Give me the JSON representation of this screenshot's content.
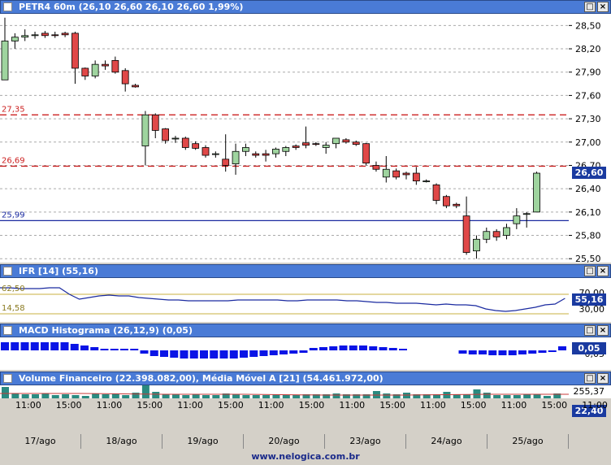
{
  "main": {
    "title": "PETR4 60m",
    "ohlc": "(26,10   26,60   26,10   26,60   1,99%)",
    "price_ticks": [
      "28,50",
      "28,20",
      "27,90",
      "27,60",
      "27,30",
      "27,00",
      "26,70",
      "26,40",
      "26,10",
      "25,80",
      "25,50"
    ],
    "levels": [
      {
        "label": "27,35",
        "value": 27.35,
        "color": "#cc2222",
        "style": "dashed"
      },
      {
        "label": "26,69",
        "value": 26.69,
        "color": "#cc2222",
        "style": "dashed"
      },
      {
        "label": "25,99",
        "value": 25.99,
        "color": "#1a2aa0",
        "style": "solid"
      }
    ],
    "last_price": "26,60"
  },
  "ifr": {
    "title": "IFR [14]",
    "value_text": "(55,16)",
    "ticks": [
      "70,00",
      "30,00"
    ],
    "levels": [
      "62,50",
      "14,58"
    ],
    "last": "55,16"
  },
  "macd": {
    "title": "MACD Histograma (26,12,9)",
    "value_text": "(0,05)",
    "tick": "0,05",
    "last": "0,05"
  },
  "volume": {
    "title": "Volume Financeiro",
    "value_text": "(22.398.082,00)",
    "ma_text": ", Média Móvel A [21]",
    "ma_value": "(54.461.972,00)",
    "tick": "255,37",
    "last": "22,40"
  },
  "time_labels": [
    "11:00",
    "15:00",
    "11:00",
    "15:00",
    "11:00",
    "15:00",
    "11:00",
    "15:00",
    "11:00",
    "15:00",
    "11:00",
    "15:00",
    "11:00",
    "15:00",
    "11:00"
  ],
  "days": [
    "17/ago",
    "18/ago",
    "19/ago",
    "20/ago",
    "23/ago",
    "24/ago",
    "25/ago"
  ],
  "footer": "www.nelogica.com.br",
  "colors": {
    "up": "#9fd49f",
    "down": "#e04848",
    "accent": "#1a3aa0",
    "title": "#4a7bd6"
  },
  "chart_data": {
    "type": "candlestick",
    "title": "PETR4 60m",
    "candles": [
      {
        "o": 27.8,
        "h": 28.6,
        "l": 27.8,
        "c": 28.3
      },
      {
        "o": 28.3,
        "h": 28.4,
        "l": 28.2,
        "c": 28.35
      },
      {
        "o": 28.35,
        "h": 28.45,
        "l": 28.3,
        "c": 28.37
      },
      {
        "o": 28.37,
        "h": 28.42,
        "l": 28.33,
        "c": 28.38
      },
      {
        "o": 28.4,
        "h": 28.43,
        "l": 28.34,
        "c": 28.37
      },
      {
        "o": 28.38,
        "h": 28.42,
        "l": 28.34,
        "c": 28.37
      },
      {
        "o": 28.4,
        "h": 28.42,
        "l": 28.35,
        "c": 28.38
      },
      {
        "o": 28.4,
        "h": 28.42,
        "l": 27.75,
        "c": 27.95
      },
      {
        "o": 27.95,
        "h": 27.96,
        "l": 27.8,
        "c": 27.85
      },
      {
        "o": 27.85,
        "h": 28.05,
        "l": 27.82,
        "c": 28.0
      },
      {
        "o": 28.0,
        "h": 28.05,
        "l": 27.93,
        "c": 27.98
      },
      {
        "o": 28.05,
        "h": 28.1,
        "l": 27.88,
        "c": 27.9
      },
      {
        "o": 27.92,
        "h": 27.95,
        "l": 27.65,
        "c": 27.75
      },
      {
        "o": 27.73,
        "h": 27.75,
        "l": 27.7,
        "c": 27.71
      },
      {
        "o": 26.95,
        "h": 27.4,
        "l": 26.7,
        "c": 27.35
      },
      {
        "o": 27.35,
        "h": 27.37,
        "l": 27.05,
        "c": 27.15
      },
      {
        "o": 27.17,
        "h": 27.18,
        "l": 26.98,
        "c": 27.02
      },
      {
        "o": 27.05,
        "h": 27.08,
        "l": 26.99,
        "c": 27.05
      },
      {
        "o": 27.05,
        "h": 27.07,
        "l": 26.9,
        "c": 26.93
      },
      {
        "o": 26.98,
        "h": 27.01,
        "l": 26.9,
        "c": 26.92
      },
      {
        "o": 26.93,
        "h": 26.96,
        "l": 26.8,
        "c": 26.83
      },
      {
        "o": 26.85,
        "h": 26.88,
        "l": 26.8,
        "c": 26.85
      },
      {
        "o": 26.78,
        "h": 27.1,
        "l": 26.62,
        "c": 26.7
      },
      {
        "o": 26.72,
        "h": 26.98,
        "l": 26.58,
        "c": 26.88
      },
      {
        "o": 26.88,
        "h": 26.98,
        "l": 26.82,
        "c": 26.93
      },
      {
        "o": 26.85,
        "h": 26.88,
        "l": 26.8,
        "c": 26.83
      },
      {
        "o": 26.85,
        "h": 26.9,
        "l": 26.75,
        "c": 26.83
      },
      {
        "o": 26.85,
        "h": 26.93,
        "l": 26.8,
        "c": 26.91
      },
      {
        "o": 26.88,
        "h": 26.95,
        "l": 26.82,
        "c": 26.93
      },
      {
        "o": 26.95,
        "h": 26.97,
        "l": 26.9,
        "c": 26.93
      },
      {
        "o": 26.99,
        "h": 27.2,
        "l": 26.92,
        "c": 26.96
      },
      {
        "o": 26.98,
        "h": 27.0,
        "l": 26.95,
        "c": 26.97
      },
      {
        "o": 26.93,
        "h": 27.0,
        "l": 26.85,
        "c": 26.96
      },
      {
        "o": 26.98,
        "h": 27.04,
        "l": 26.92,
        "c": 27.05
      },
      {
        "o": 27.03,
        "h": 27.05,
        "l": 26.98,
        "c": 27.0
      },
      {
        "o": 27.0,
        "h": 27.02,
        "l": 26.95,
        "c": 26.97
      },
      {
        "o": 26.98,
        "h": 26.99,
        "l": 26.7,
        "c": 26.73
      },
      {
        "o": 26.7,
        "h": 26.75,
        "l": 26.62,
        "c": 26.65
      },
      {
        "o": 26.55,
        "h": 26.82,
        "l": 26.48,
        "c": 26.65
      },
      {
        "o": 26.63,
        "h": 26.66,
        "l": 26.52,
        "c": 26.55
      },
      {
        "o": 26.6,
        "h": 26.62,
        "l": 26.52,
        "c": 26.58
      },
      {
        "o": 26.6,
        "h": 26.68,
        "l": 26.45,
        "c": 26.5
      },
      {
        "o": 26.5,
        "h": 26.52,
        "l": 26.48,
        "c": 26.5
      },
      {
        "o": 26.45,
        "h": 26.47,
        "l": 26.2,
        "c": 26.25
      },
      {
        "o": 26.3,
        "h": 26.32,
        "l": 26.15,
        "c": 26.18
      },
      {
        "o": 26.2,
        "h": 26.22,
        "l": 26.15,
        "c": 26.18
      },
      {
        "o": 26.05,
        "h": 26.3,
        "l": 25.55,
        "c": 25.58
      },
      {
        "o": 25.6,
        "h": 25.8,
        "l": 25.5,
        "c": 25.75
      },
      {
        "o": 25.75,
        "h": 25.9,
        "l": 25.7,
        "c": 25.85
      },
      {
        "o": 25.85,
        "h": 25.88,
        "l": 25.73,
        "c": 25.78
      },
      {
        "o": 25.8,
        "h": 25.95,
        "l": 25.75,
        "c": 25.9
      },
      {
        "o": 25.95,
        "h": 26.15,
        "l": 25.88,
        "c": 26.05
      },
      {
        "o": 26.08,
        "h": 26.1,
        "l": 25.9,
        "c": 26.08
      },
      {
        "o": 26.1,
        "h": 26.62,
        "l": 26.1,
        "c": 26.6
      }
    ],
    "ylim": [
      25.45,
      28.65
    ]
  }
}
